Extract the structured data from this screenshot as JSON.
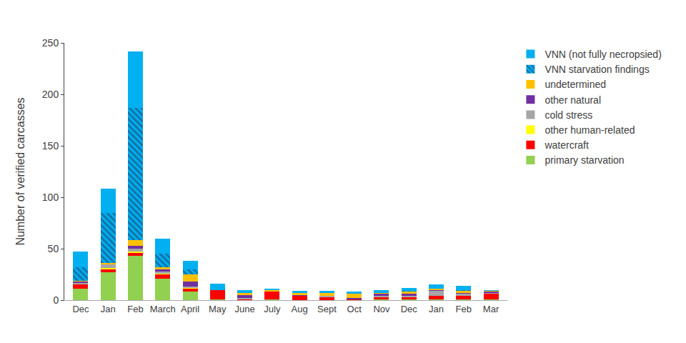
{
  "chart_data": {
    "type": "bar",
    "stacked": true,
    "grid": false,
    "legend": "right",
    "y_label": "Number of verified carcasses",
    "categories": [
      "Dec",
      "Jan",
      "Feb",
      "March",
      "April",
      "May",
      "June",
      "July",
      "Aug",
      "Sept",
      "Oct",
      "Nov",
      "Dec",
      "Jan",
      "Feb",
      "Mar"
    ],
    "ylim": [
      0,
      250
    ],
    "yticks": [
      0,
      50,
      100,
      150,
      200,
      250
    ],
    "series": [
      {
        "name": "primary starvation",
        "color": "#92D050",
        "values": [
          11,
          27,
          43,
          21,
          8,
          1,
          0,
          1,
          0,
          0,
          0,
          1,
          1,
          1,
          1,
          1
        ]
      },
      {
        "name": "watercraft",
        "color": "#FF0000",
        "values": [
          4,
          3,
          3,
          4,
          3,
          9,
          1,
          7,
          4,
          3,
          1,
          2,
          2,
          3,
          3,
          5
        ]
      },
      {
        "name": "other human-related",
        "color": "#FFFF00",
        "values": [
          0,
          1,
          1,
          1,
          1,
          0,
          0,
          0,
          0,
          0,
          0,
          0,
          0,
          0,
          0,
          0
        ]
      },
      {
        "name": "cold stress",
        "color": "#A6A6A6",
        "values": [
          2,
          4,
          3,
          2,
          1,
          0,
          1,
          0,
          0,
          1,
          0,
          1,
          1,
          5,
          2,
          1
        ]
      },
      {
        "name": "other natural",
        "color": "#7030A0",
        "values": [
          1,
          0,
          3,
          2,
          5,
          0,
          3,
          0,
          1,
          0,
          1,
          2,
          2,
          1,
          1,
          1
        ]
      },
      {
        "name": "undetermined",
        "color": "#FFC000",
        "values": [
          1,
          1,
          5,
          2,
          7,
          0,
          2,
          2,
          2,
          3,
          4,
          1,
          2,
          1,
          2,
          1
        ]
      },
      {
        "name": "VNN starvation findings",
        "color": "#00B0F0",
        "marker": "hatched",
        "values": [
          13,
          49,
          129,
          13,
          5,
          0,
          0,
          0,
          0,
          0,
          0,
          0,
          1,
          0,
          1,
          0
        ]
      },
      {
        "name": "VNN (not fully necropsied)",
        "color": "#00B0F0",
        "values": [
          15,
          23,
          55,
          15,
          8,
          6,
          3,
          1,
          2,
          2,
          2,
          3,
          3,
          4,
          4,
          1
        ]
      }
    ]
  }
}
